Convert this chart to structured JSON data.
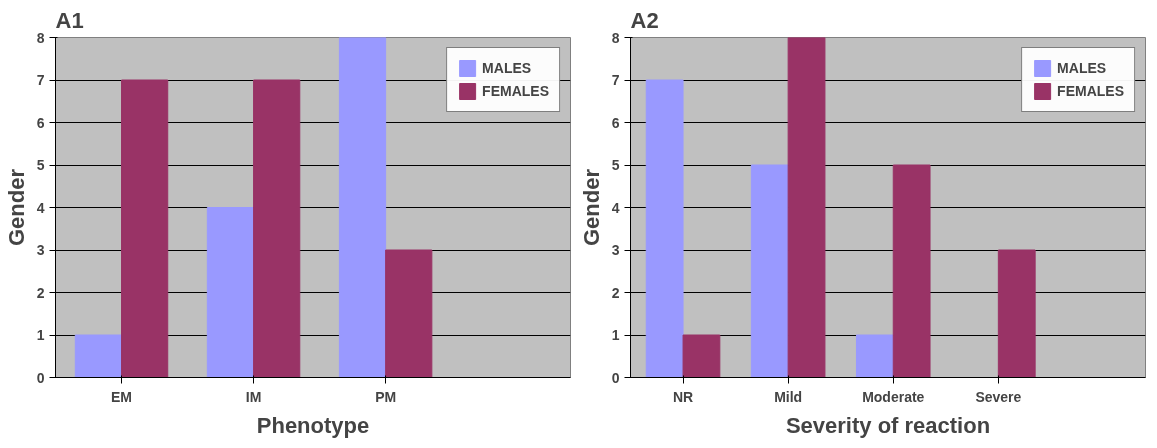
{
  "chart_data": [
    {
      "type": "bar",
      "title": "A1",
      "xlabel": "Phenotype",
      "ylabel": "Gender",
      "categories": [
        "EM",
        "IM",
        "PM"
      ],
      "series": [
        {
          "name": "MALES",
          "color": "#9999ff",
          "values": [
            1,
            4,
            8
          ]
        },
        {
          "name": "FEMALES",
          "color": "#993366",
          "values": [
            7,
            7,
            3
          ]
        }
      ],
      "ylim": [
        0,
        8
      ],
      "yticks": [
        0,
        1,
        2,
        3,
        4,
        5,
        6,
        7,
        8
      ],
      "grid": "y",
      "legend": "top right"
    },
    {
      "type": "bar",
      "title": "A2",
      "xlabel": "Severity of reaction",
      "ylabel": "Gender",
      "categories": [
        "NR",
        "Mild",
        "Moderate",
        "Severe"
      ],
      "series": [
        {
          "name": "MALES",
          "color": "#9999ff",
          "values": [
            7,
            5,
            1,
            0
          ]
        },
        {
          "name": "FEMALES",
          "color": "#993366",
          "values": [
            1,
            8,
            5,
            3
          ]
        }
      ],
      "ylim": [
        0,
        8
      ],
      "yticks": [
        0,
        1,
        2,
        3,
        4,
        5,
        6,
        7,
        8
      ],
      "grid": "y",
      "legend": "top right"
    }
  ]
}
